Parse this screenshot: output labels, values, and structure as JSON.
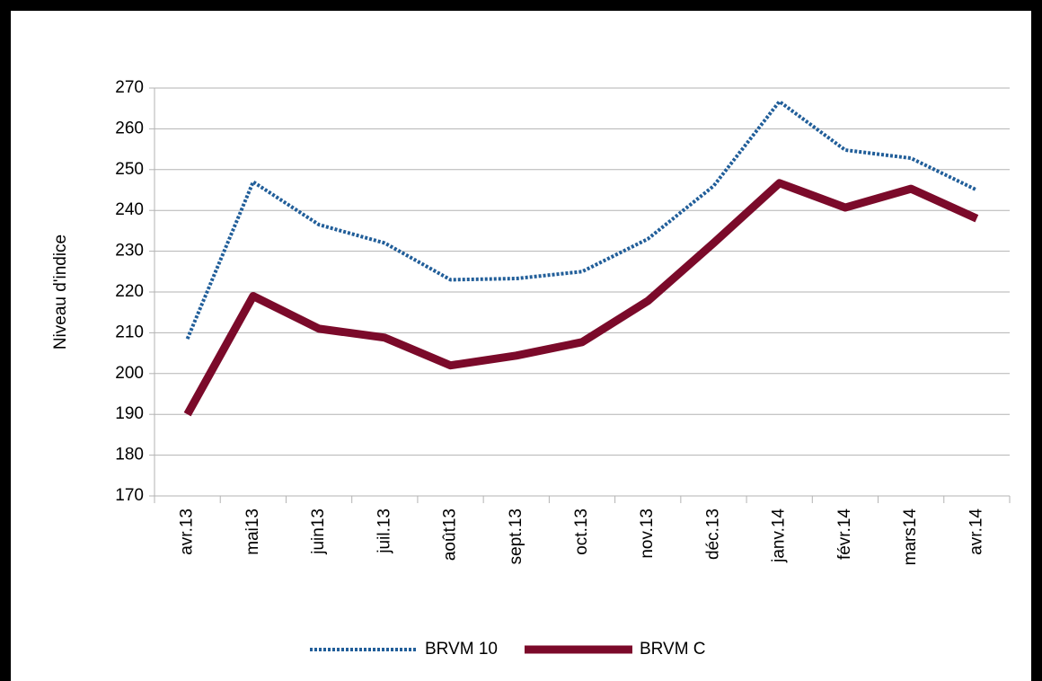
{
  "chart_data": {
    "type": "line",
    "y_label": "Niveau d'indice",
    "categories": [
      "avr.13",
      "mai13",
      "juin13",
      "juil.13",
      "août13",
      "sept.13",
      "oct.13",
      "nov.13",
      "déc.13",
      "janv.14",
      "févr.14",
      "mars14",
      "avr.14"
    ],
    "series": [
      {
        "name": "BRVM 10",
        "color": "#215e99",
        "style": "dotted",
        "values": [
          208.5,
          247,
          236.5,
          232,
          223,
          223.3,
          225,
          233,
          246,
          266.7,
          254.8,
          252.8,
          245
        ]
      },
      {
        "name": "BRVM C",
        "color": "#7b0a2a",
        "style": "solid",
        "values": [
          190,
          219,
          211,
          208.8,
          202,
          204.4,
          207.7,
          217.8,
          232,
          246.7,
          240.7,
          245.3,
          238
        ]
      }
    ],
    "ylim": [
      170,
      270
    ],
    "yticks": [
      170,
      180,
      190,
      200,
      210,
      220,
      230,
      240,
      250,
      260,
      270
    ],
    "grid": true,
    "legend": "bottom"
  }
}
